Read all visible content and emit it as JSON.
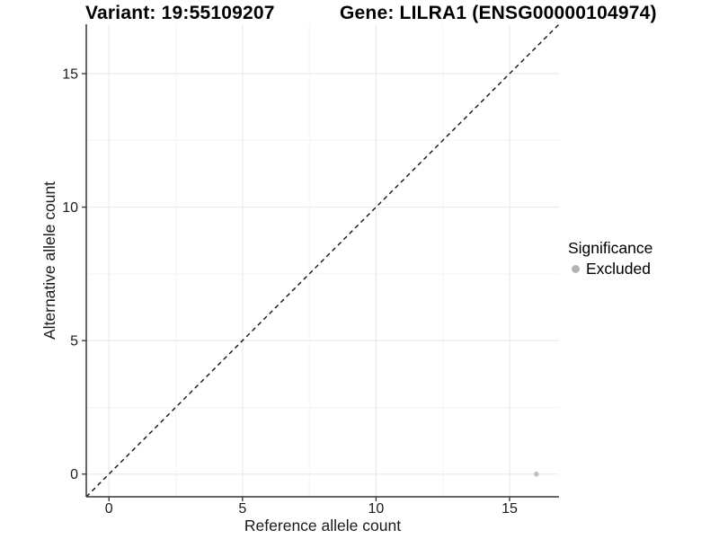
{
  "header": {
    "variant_title": "Variant: 19:55109207",
    "gene_title": "Gene: LILRA1 (ENSG00000104974)"
  },
  "axes": {
    "x_label": "Reference allele count",
    "y_label": "Alternative allele count"
  },
  "legend": {
    "title": "Significance",
    "items": [
      {
        "label": "Excluded",
        "marker": "circle-icon",
        "color": "#b3b3b3"
      }
    ]
  },
  "chart_data": {
    "type": "scatter",
    "titles": [
      "Variant: 19:55109207",
      "Gene: LILRA1 (ENSG00000104974)"
    ],
    "xlabel": "Reference allele count",
    "ylabel": "Alternative allele count",
    "xlim": [
      -0.85,
      16.85
    ],
    "ylim": [
      -0.85,
      16.85
    ],
    "x_ticks": [
      0,
      5,
      10,
      15
    ],
    "y_ticks": [
      0,
      5,
      10,
      15
    ],
    "x_minor_ticks": [
      2.5,
      7.5,
      12.5
    ],
    "y_minor_ticks": [
      2.5,
      7.5,
      12.5
    ],
    "grid": true,
    "legend_position": "right",
    "series": [
      {
        "name": "Excluded",
        "marker": "circle",
        "color": "#bfbfbf",
        "points": [
          {
            "x": 16,
            "y": 0
          }
        ]
      }
    ],
    "reference_line": {
      "kind": "identity",
      "slope": 1,
      "intercept": 0,
      "style": "dashed",
      "color": "#111111"
    },
    "style": {
      "background": "#ffffff",
      "axis_color": "#333333",
      "grid_major_color": "#ebebeb",
      "grid_minor_color": "#f4f4f4",
      "tick_label_color": "#1a1a1a"
    }
  }
}
